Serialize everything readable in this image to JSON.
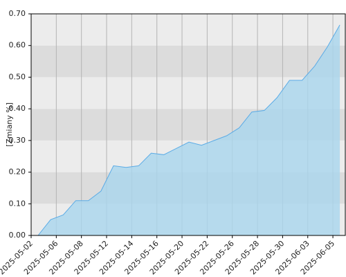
{
  "chart_data": {
    "type": "area",
    "y_label": "[Zmiany %]",
    "categories": [
      "2025-05-02",
      null,
      "2025-05-06",
      null,
      "2025-05-08",
      null,
      "2025-05-12",
      null,
      "2025-05-14",
      null,
      "2025-05-16",
      null,
      "2025-05-20",
      null,
      "2025-05-22",
      null,
      "2025-05-26",
      null,
      "2025-05-28",
      null,
      "2025-05-30",
      null,
      "2025-06-03",
      null,
      "2025-06-05"
    ],
    "values": [
      0.0,
      0.05,
      0.065,
      0.11,
      0.11,
      0.14,
      0.22,
      0.215,
      0.22,
      0.26,
      0.255,
      0.275,
      0.295,
      0.285,
      0.3,
      0.315,
      0.34,
      0.39,
      0.395,
      0.435,
      0.49,
      0.49,
      0.535,
      0.595,
      0.665
    ],
    "color": "#5aabe6",
    "ylim": [
      0,
      0.7
    ],
    "yticks": [
      {
        "value": 0,
        "label": "0.00"
      },
      {
        "value": 0.1,
        "label": "0.10"
      },
      {
        "value": 0.2,
        "label": "0.20"
      },
      {
        "value": 0.3,
        "label": "0.30"
      },
      {
        "value": 0.4,
        "label": "0.40"
      },
      {
        "value": 0.5,
        "label": "0.50"
      },
      {
        "value": 0.6,
        "label": "0.60"
      },
      {
        "value": 0.7,
        "label": "0.70"
      }
    ],
    "grid": true
  }
}
